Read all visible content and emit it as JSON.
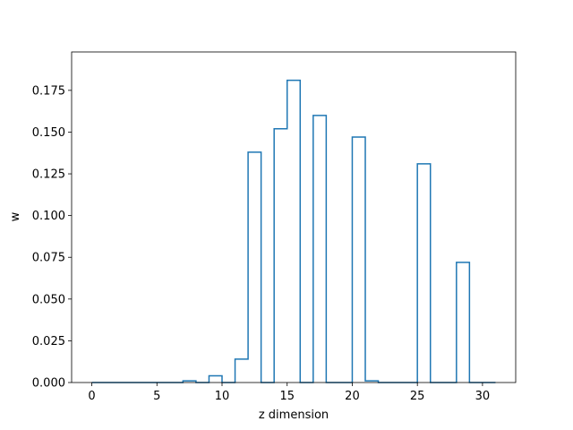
{
  "chart_data": {
    "type": "bar",
    "style": "step-histogram",
    "title": "",
    "xlabel": "z dimension",
    "ylabel": "w",
    "xlim": [
      -1.55,
      32.55
    ],
    "ylim": [
      0,
      0.198
    ],
    "xticks": [
      0,
      5,
      10,
      15,
      20,
      25,
      30
    ],
    "xtick_labels": [
      "0",
      "5",
      "10",
      "15",
      "20",
      "25",
      "30"
    ],
    "yticks": [
      0,
      0.025,
      0.05,
      0.075,
      0.1,
      0.125,
      0.15,
      0.175
    ],
    "ytick_labels": [
      "0.000",
      "0.025",
      "0.050",
      "0.075",
      "0.100",
      "0.125",
      "0.150",
      "0.175"
    ],
    "grid": false,
    "x": [
      0,
      1,
      2,
      3,
      4,
      5,
      6,
      7,
      8,
      9,
      10,
      11,
      12,
      13,
      14,
      15,
      16,
      17,
      18,
      19,
      20,
      21,
      22,
      23,
      24,
      25,
      26,
      27,
      28,
      29,
      30
    ],
    "values": [
      0,
      0,
      0,
      0,
      0,
      0,
      0,
      0.001,
      0,
      0.004,
      0,
      0.014,
      0.138,
      0,
      0.152,
      0.181,
      0,
      0.16,
      0,
      0,
      0.147,
      0.001,
      0,
      0,
      0,
      0.131,
      0,
      0,
      0.072,
      0,
      0
    ],
    "bin_start": 0,
    "bin_width": 1,
    "color": "#1f77b4"
  }
}
